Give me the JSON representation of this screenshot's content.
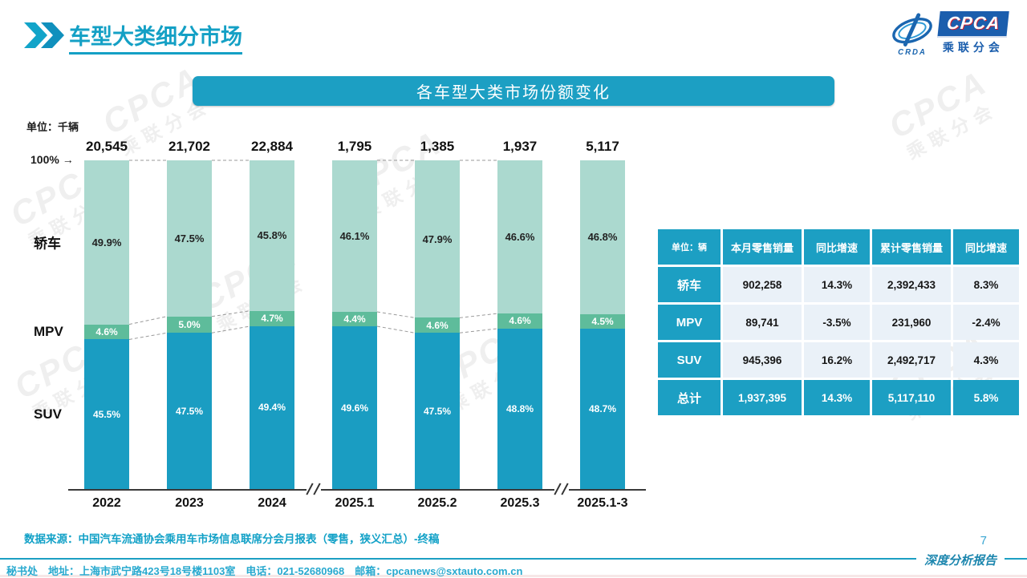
{
  "page": {
    "title": "车型大类细分市场",
    "page_number": "7",
    "report_type_label": "深度分析报告",
    "source_note": "数据来源：中国汽车流通协会乘用车市场信息联席分会月报表（零售，狭义汇总）-终稿",
    "footer": "秘书处　地址：上海市武宁路423号18号楼1103室　电话：021-52680968　邮箱：cpcanews@sxtauto.com.cn"
  },
  "logo": {
    "crda": "CRDA",
    "cpca": "CPCA",
    "subtitle": "乘联分会"
  },
  "watermark": {
    "line1": "CPCA",
    "line2": "乘联分会"
  },
  "chart_data": {
    "type": "bar",
    "stacked": true,
    "title": "各车型大类市场份额变化",
    "unit_label": "单位：千辆",
    "axis_top_label": "100%",
    "axis_top_arrow": "→",
    "categories": [
      "2022",
      "2023",
      "2024",
      "2025.1",
      "2025.2",
      "2025.3",
      "2025.1-3"
    ],
    "totals": [
      "20,545",
      "21,702",
      "22,884",
      "1,795",
      "1,385",
      "1,937",
      "5,117"
    ],
    "series": [
      {
        "name": "轿车",
        "color": "#ABD9CF",
        "label_color": "dark",
        "values": [
          49.9,
          47.5,
          45.8,
          46.1,
          47.9,
          46.6,
          46.8
        ]
      },
      {
        "name": "MPV",
        "color": "#5EBC9B",
        "label_color": "white",
        "values": [
          4.6,
          5.0,
          4.7,
          4.4,
          4.6,
          4.6,
          4.5
        ]
      },
      {
        "name": "SUV",
        "color": "#1A9DC2",
        "label_color": "white",
        "values": [
          45.5,
          47.5,
          49.4,
          49.6,
          47.5,
          48.8,
          48.7
        ]
      }
    ],
    "ylim": [
      0,
      100
    ],
    "legend_position": "left-category-labels",
    "connected_pairs": [
      [
        0,
        1
      ],
      [
        1,
        2
      ],
      [
        3,
        4
      ],
      [
        4,
        5
      ]
    ],
    "axis_breaks_after": [
      2,
      5
    ]
  },
  "table": {
    "headers": [
      "单位：辆",
      "本月零售销量",
      "同比增速",
      "累计零售销量",
      "同比增速"
    ],
    "rows": [
      {
        "label": "轿车",
        "cells": [
          "902,258",
          "14.3%",
          "2,392,433",
          "8.3%"
        ],
        "highlight": false
      },
      {
        "label": "MPV",
        "cells": [
          "89,741",
          "-3.5%",
          "231,960",
          "-2.4%"
        ],
        "highlight": false
      },
      {
        "label": "SUV",
        "cells": [
          "945,396",
          "16.2%",
          "2,492,717",
          "4.3%"
        ],
        "highlight": false
      },
      {
        "label": "总计",
        "cells": [
          "1,937,395",
          "14.3%",
          "5,117,110",
          "5.8%"
        ],
        "highlight": true
      }
    ]
  },
  "colors": {
    "accent_teal": "#1C9FC3",
    "sedan_mint": "#ABD9CF",
    "mpv_green": "#5EBC9B",
    "suv_teal": "#1A9DC2",
    "table_cell_bg": "#EAF1F8",
    "logo_blue": "#1B5EAD"
  }
}
